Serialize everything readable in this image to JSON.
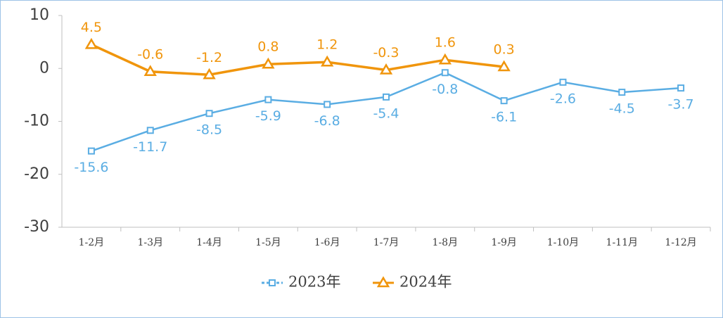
{
  "chart_data": {
    "type": "line",
    "categories": [
      "1-2月",
      "1-3月",
      "1-4月",
      "1-5月",
      "1-6月",
      "1-7月",
      "1-8月",
      "1-9月",
      "1-10月",
      "1-11月",
      "1-12月"
    ],
    "series": [
      {
        "name": "2023年",
        "color": "#5aade3",
        "marker": "square",
        "label_position": "below",
        "values": [
          -15.6,
          -11.7,
          -8.5,
          -5.9,
          -6.8,
          -5.4,
          -0.8,
          -6.1,
          -2.6,
          -4.5,
          -3.7
        ]
      },
      {
        "name": "2024年",
        "color": "#f0950c",
        "marker": "triangle",
        "label_position": "above",
        "values": [
          4.5,
          -0.6,
          -1.2,
          0.8,
          1.2,
          -0.3,
          1.6,
          0.3,
          null,
          null,
          null
        ]
      }
    ],
    "ylim": [
      -30,
      10
    ],
    "yticks": [
      -30,
      -20,
      -10,
      0,
      10
    ],
    "grid": false,
    "legend": "bottom"
  }
}
